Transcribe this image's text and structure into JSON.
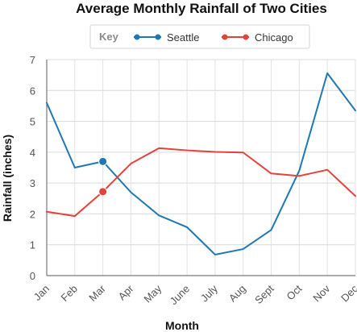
{
  "chart_data": {
    "type": "line",
    "title": "Average Monthly Rainfall of Two Cities",
    "legend_key_label": "Key",
    "legend_position": "top-center",
    "xlabel": "Month",
    "ylabel": "Rainfall (inches)",
    "ylim": [
      0,
      7
    ],
    "yticks": [
      "0",
      "1",
      "2",
      "3",
      "4",
      "5",
      "6",
      "7"
    ],
    "categories": [
      "Jan",
      "Feb",
      "Mar",
      "Apr",
      "May",
      "June",
      "July",
      "Aug",
      "Sept",
      "Oct",
      "Nov",
      "Dec"
    ],
    "grid": true,
    "highlighted_category": "Mar",
    "series": [
      {
        "name": "Seattle",
        "color": "#1f77b4",
        "values": [
          5.6,
          3.5,
          3.7,
          2.7,
          1.95,
          1.57,
          0.68,
          0.86,
          1.48,
          3.4,
          6.56,
          5.35
        ]
      },
      {
        "name": "Chicago",
        "color": "#e5413a",
        "values": [
          2.07,
          1.93,
          2.72,
          3.63,
          4.13,
          4.06,
          4.01,
          3.99,
          3.31,
          3.23,
          3.43,
          2.58
        ]
      }
    ]
  }
}
